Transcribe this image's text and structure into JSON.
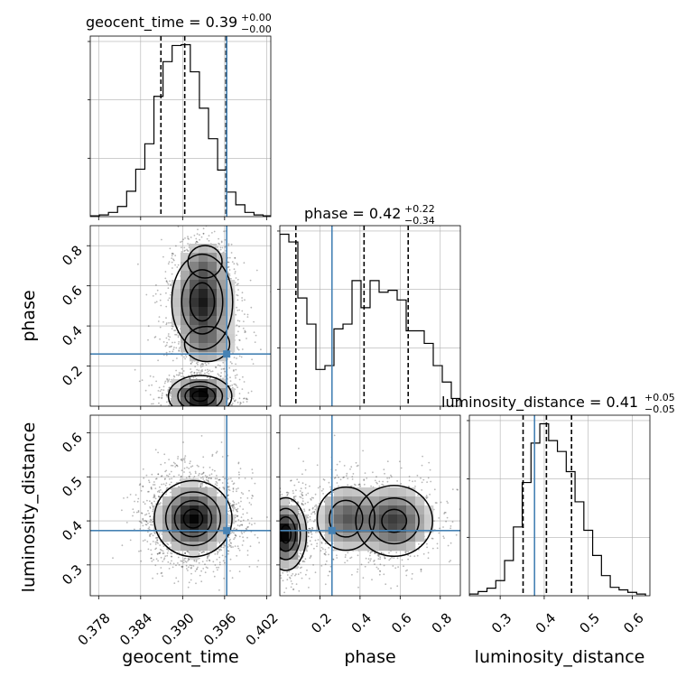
{
  "chart_data": {
    "type": "corner",
    "parameters": [
      "geocent_time",
      "phase",
      "luminosity_distance"
    ],
    "axis_labels": {
      "x": [
        "geocent_time",
        "phase",
        "luminosity_distance"
      ],
      "y": [
        "phase",
        "luminosity_distance"
      ]
    },
    "ranges": {
      "geocent_time": [
        0.3768,
        0.4026
      ],
      "phase": [
        0.0,
        0.9
      ],
      "luminosity_distance": [
        0.23,
        0.64
      ]
    },
    "truths": {
      "geocent_time": 0.3963,
      "phase": 0.26,
      "luminosity_distance": 0.378
    },
    "titles": [
      {
        "param": "geocent_time",
        "text": "geocent_time = 0.39",
        "upper": "+0.00",
        "lower": "−0.00"
      },
      {
        "param": "phase",
        "text": "phase = 0.42",
        "upper": "+0.22",
        "lower": "−0.34"
      },
      {
        "param": "luminosity_distance",
        "text": "luminosity_distance = 0.41",
        "upper": "+0.05",
        "lower": "−0.05"
      }
    ],
    "quantiles": {
      "geocent_time": [
        0.3869,
        0.3903,
        0.3962
      ],
      "phase": [
        0.08,
        0.42,
        0.64
      ],
      "luminosity_distance": [
        0.352,
        0.405,
        0.462
      ]
    },
    "ticks": {
      "geocent_time": [
        "0.378",
        "0.384",
        "0.390",
        "0.396",
        "0.402"
      ],
      "phase": [
        "0.2",
        "0.4",
        "0.6",
        "0.8"
      ],
      "luminosity_distance": [
        "0.3",
        "0.4",
        "0.5",
        "0.6"
      ]
    },
    "histograms": {
      "geocent_time": {
        "edges": [
          0.3768,
          0.3781,
          0.3794,
          0.3807,
          0.382,
          0.3833,
          0.3846,
          0.3859,
          0.3872,
          0.3885,
          0.3898,
          0.3911,
          0.3924,
          0.3937,
          0.395,
          0.3963,
          0.3976,
          0.3989,
          0.4002,
          0.4015,
          0.4028
        ],
        "counts": [
          1,
          2,
          5,
          12,
          30,
          56,
          86,
          142,
          183,
          202,
          203,
          171,
          128,
          92,
          55,
          29,
          14,
          5,
          2,
          1
        ]
      },
      "phase": {
        "edges": [
          0.0,
          0.045,
          0.09,
          0.135,
          0.18,
          0.225,
          0.27,
          0.315,
          0.36,
          0.405,
          0.45,
          0.495,
          0.54,
          0.585,
          0.63,
          0.675,
          0.72,
          0.765,
          0.81,
          0.855,
          0.9
        ],
        "counts": [
          178,
          170,
          112,
          85,
          38,
          42,
          80,
          85,
          130,
          102,
          130,
          118,
          120,
          110,
          78,
          78,
          65,
          42,
          25,
          8
        ]
      },
      "luminosity_distance": {
        "edges": [
          0.23,
          0.25,
          0.27,
          0.29,
          0.31,
          0.33,
          0.35,
          0.37,
          0.39,
          0.41,
          0.43,
          0.45,
          0.47,
          0.49,
          0.51,
          0.53,
          0.55,
          0.57,
          0.59,
          0.61,
          0.63
        ],
        "counts": [
          2,
          5,
          9,
          18,
          42,
          82,
          135,
          182,
          205,
          185,
          172,
          148,
          112,
          78,
          48,
          24,
          10,
          7,
          4,
          2
        ]
      }
    },
    "density_peaks": {
      "phase_vs_geocent_time": [
        {
          "x": 0.3925,
          "y": 0.05,
          "sx": 0.0022,
          "sy": 0.05,
          "w": 1.0
        },
        {
          "x": 0.3928,
          "y": 0.52,
          "sx": 0.0022,
          "sy": 0.12,
          "w": 0.85
        },
        {
          "x": 0.3935,
          "y": 0.31,
          "sx": 0.0022,
          "sy": 0.06,
          "w": 0.35
        },
        {
          "x": 0.3932,
          "y": 0.72,
          "sx": 0.0018,
          "sy": 0.06,
          "w": 0.3
        }
      ],
      "luminosity_distance_vs_geocent_time": [
        {
          "x": 0.3915,
          "y": 0.405,
          "sx": 0.0027,
          "sy": 0.042,
          "w": 1.0
        }
      ],
      "luminosity_distance_vs_phase": [
        {
          "x": 0.03,
          "y": 0.37,
          "sx": 0.05,
          "sy": 0.04,
          "w": 1.0
        },
        {
          "x": 0.33,
          "y": 0.405,
          "sx": 0.08,
          "sy": 0.04,
          "w": 0.6
        },
        {
          "x": 0.57,
          "y": 0.4,
          "sx": 0.1,
          "sy": 0.042,
          "w": 0.75
        }
      ]
    },
    "colors": {
      "truth": "#4682b4",
      "line": "#000000",
      "grid": "#b0b0b0"
    },
    "grid": true
  }
}
